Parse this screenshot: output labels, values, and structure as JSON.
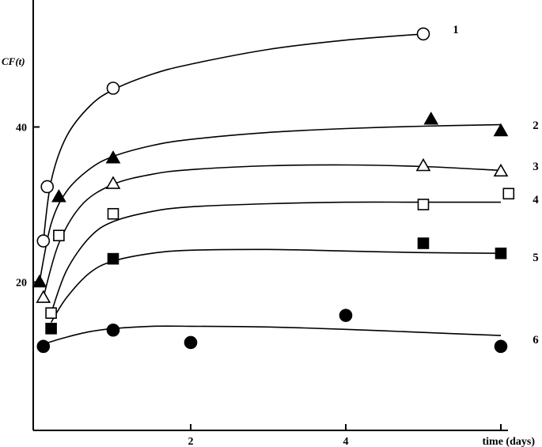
{
  "chart_data": {
    "type": "scatter",
    "title": "",
    "ylabel": "CF(t)",
    "xlabel": "time (days)",
    "xlim": [
      -0.05,
      6.5
    ],
    "ylim": [
      2.5,
      54
    ],
    "x_ticks": [
      2,
      4
    ],
    "y_ticks": [
      20,
      40
    ],
    "grid": false,
    "legend": "none (curve numbers at right end)",
    "series": [
      {
        "name": "1",
        "marker": "open-circle",
        "points": [
          [
            0.1,
            25.3
          ],
          [
            0.15,
            32.3
          ],
          [
            1.0,
            45.0
          ],
          [
            5.0,
            52.0
          ]
        ],
        "fit": [
          [
            0.1,
            25.3
          ],
          [
            0.2,
            33.0
          ],
          [
            0.4,
            38.8
          ],
          [
            0.7,
            42.7
          ],
          [
            1.0,
            44.8
          ],
          [
            1.5,
            46.8
          ],
          [
            2.0,
            48.1
          ],
          [
            3.0,
            50.0
          ],
          [
            4.0,
            51.2
          ],
          [
            5.0,
            52.0
          ]
        ]
      },
      {
        "name": "2",
        "marker": "filled-triangle",
        "points": [
          [
            0.05,
            20.0
          ],
          [
            0.3,
            31.0
          ],
          [
            1.0,
            36.0
          ],
          [
            5.1,
            41.0
          ],
          [
            6.0,
            39.5
          ]
        ],
        "fit": [
          [
            0.05,
            20.0
          ],
          [
            0.2,
            27.5
          ],
          [
            0.4,
            31.7
          ],
          [
            0.7,
            34.6
          ],
          [
            1.0,
            36.2
          ],
          [
            1.5,
            37.6
          ],
          [
            2.0,
            38.4
          ],
          [
            3.0,
            39.3
          ],
          [
            4.0,
            39.8
          ],
          [
            5.0,
            40.1
          ],
          [
            6.0,
            40.3
          ]
        ]
      },
      {
        "name": "3",
        "marker": "open-triangle",
        "points": [
          [
            0.1,
            18.0
          ],
          [
            1.0,
            32.7
          ],
          [
            5.0,
            35.0
          ],
          [
            6.0,
            34.3
          ]
        ],
        "fit": [
          [
            0.1,
            18.0
          ],
          [
            0.3,
            25.0
          ],
          [
            0.6,
            30.0
          ],
          [
            1.0,
            32.6
          ],
          [
            1.5,
            33.9
          ],
          [
            2.0,
            34.5
          ],
          [
            3.0,
            35.0
          ],
          [
            4.0,
            35.1
          ],
          [
            5.0,
            34.9
          ],
          [
            6.0,
            34.4
          ]
        ]
      },
      {
        "name": "4",
        "marker": "open-square",
        "points": [
          [
            0.2,
            16.0
          ],
          [
            0.3,
            26.0
          ],
          [
            1.0,
            28.8
          ],
          [
            5.0,
            30.0
          ],
          [
            6.1,
            31.4
          ]
        ],
        "fit": [
          [
            0.2,
            16.0
          ],
          [
            0.4,
            21.5
          ],
          [
            0.7,
            25.8
          ],
          [
            1.0,
            27.8
          ],
          [
            1.5,
            29.1
          ],
          [
            2.0,
            29.7
          ],
          [
            3.0,
            30.1
          ],
          [
            4.0,
            30.3
          ],
          [
            5.0,
            30.3
          ],
          [
            6.0,
            30.3
          ]
        ]
      },
      {
        "name": "5",
        "marker": "filled-square",
        "points": [
          [
            0.2,
            14.0
          ],
          [
            1.0,
            23.0
          ],
          [
            5.0,
            25.0
          ],
          [
            6.0,
            23.7
          ]
        ],
        "fit": [
          [
            0.2,
            14.8
          ],
          [
            0.4,
            18.0
          ],
          [
            0.7,
            21.2
          ],
          [
            1.0,
            22.7
          ],
          [
            1.5,
            23.7
          ],
          [
            2.0,
            24.1
          ],
          [
            3.0,
            24.2
          ],
          [
            4.0,
            24.0
          ],
          [
            5.0,
            23.8
          ],
          [
            6.0,
            23.7
          ]
        ]
      },
      {
        "name": "6",
        "marker": "filled-circle",
        "points": [
          [
            0.1,
            11.7
          ],
          [
            1.0,
            13.8
          ],
          [
            2.0,
            12.2
          ],
          [
            4.0,
            15.7
          ],
          [
            6.0,
            11.7
          ]
        ],
        "fit": [
          [
            0.1,
            12.0
          ],
          [
            0.4,
            12.9
          ],
          [
            0.7,
            13.6
          ],
          [
            1.0,
            14.0
          ],
          [
            1.5,
            14.3
          ],
          [
            2.0,
            14.3
          ],
          [
            3.0,
            14.2
          ],
          [
            4.0,
            13.9
          ],
          [
            5.0,
            13.5
          ],
          [
            6.0,
            13.1
          ]
        ]
      }
    ]
  }
}
